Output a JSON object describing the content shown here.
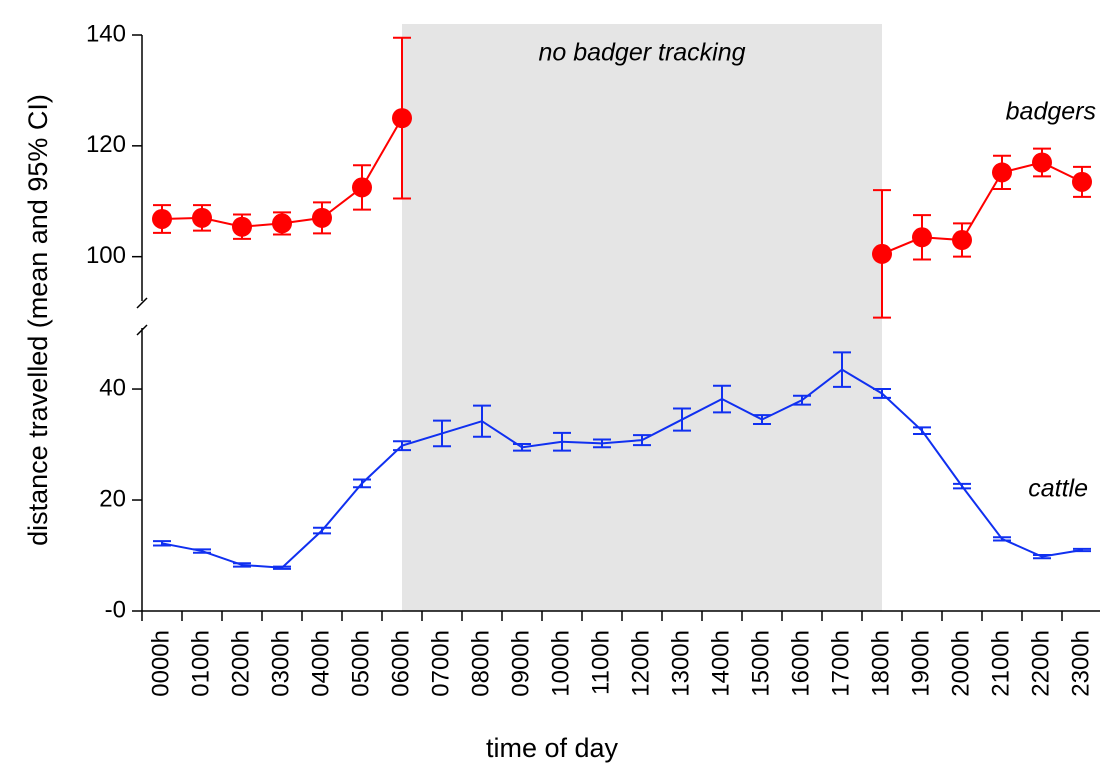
{
  "chart_data": {
    "type": "line",
    "y_axis_label": "distance travelled (mean and 95% CI)",
    "x_axis_label": "time of day",
    "categories": [
      "0000h",
      "0100h",
      "0200h",
      "0300h",
      "0400h",
      "0500h",
      "0600h",
      "0700h",
      "0800h",
      "0900h",
      "1000h",
      "1100h",
      "1200h",
      "1300h",
      "1400h",
      "1500h",
      "1600h",
      "1700h",
      "1800h",
      "1900h",
      "2000h",
      "2100h",
      "2200h",
      "2300h"
    ],
    "shaded_range": [
      "0600h",
      "1800h"
    ],
    "shaded_annotation": "no badger tracking",
    "ylim": [
      0,
      51
    ],
    "yticks": [
      {
        "value": 0,
        "label": "-0"
      },
      20,
      40
    ],
    "y2lim": [
      92,
      140
    ],
    "y2ticks": [
      100,
      120,
      140
    ],
    "series": [
      {
        "name": "badgers",
        "color": "#ff0000",
        "axis": "y2",
        "marker": "circle",
        "values": [
          106.8,
          107,
          105.4,
          106,
          107,
          112.5,
          125,
          null,
          null,
          null,
          null,
          null,
          null,
          null,
          null,
          null,
          null,
          null,
          100.5,
          103.5,
          103,
          115.2,
          117,
          113.5
        ],
        "errors": [
          2.5,
          2.3,
          2.2,
          2,
          2.8,
          4,
          14.5,
          null,
          null,
          null,
          null,
          null,
          null,
          null,
          null,
          null,
          null,
          null,
          11.5,
          4,
          3,
          3,
          2.5,
          2.7
        ]
      },
      {
        "name": "cattle",
        "color": "#1030f0",
        "marker": "none",
        "values": [
          12.2,
          10.8,
          8.3,
          7.8,
          14.5,
          23,
          29.8,
          32,
          34.2,
          29.5,
          30.5,
          30.2,
          30.8,
          34.5,
          38.2,
          34.5,
          38,
          43.5,
          39.2,
          32.5,
          22.5,
          13,
          9.8,
          11
        ],
        "errors": [
          0.4,
          0.3,
          0.3,
          0.2,
          0.5,
          0.7,
          0.8,
          2.3,
          2.8,
          0.6,
          1.6,
          0.7,
          0.9,
          2,
          2.4,
          0.8,
          0.8,
          3.1,
          0.8,
          0.6,
          0.4,
          0.3,
          0.3,
          0.2
        ]
      }
    ]
  }
}
